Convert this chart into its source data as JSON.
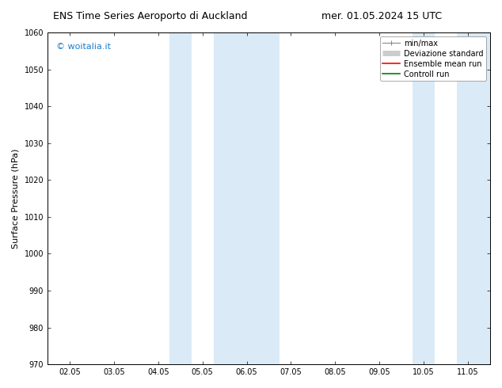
{
  "title_left": "ENS Time Series Aeroporto di Auckland",
  "title_right": "mer. 01.05.2024 15 UTC",
  "ylabel": "Surface Pressure (hPa)",
  "ylim": [
    970,
    1060
  ],
  "yticks": [
    970,
    980,
    990,
    1000,
    1010,
    1020,
    1030,
    1040,
    1050,
    1060
  ],
  "xtick_labels": [
    "02.05",
    "03.05",
    "04.05",
    "05.05",
    "06.05",
    "07.05",
    "08.05",
    "09.05",
    "10.05",
    "11.05"
  ],
  "xtick_positions": [
    1,
    2,
    3,
    4,
    5,
    6,
    7,
    8,
    9,
    10
  ],
  "xlim": [
    0.5,
    10.5
  ],
  "shaded_bands": [
    {
      "x_start": 3.0,
      "x_end": 4.0,
      "color": "#daeaf7"
    },
    {
      "x_start": 4.5,
      "x_end": 5.5,
      "color": "#daeaf7"
    },
    {
      "x_start": 9.0,
      "x_end": 9.5,
      "color": "#daeaf7"
    },
    {
      "x_start": 9.5,
      "x_end": 10.0,
      "color": "#daeaf7"
    }
  ],
  "watermark_text": "© woitalia.it",
  "watermark_color": "#1e7fce",
  "bg_color": "#ffffff",
  "title_fontsize": 9,
  "tick_fontsize": 7,
  "ylabel_fontsize": 8,
  "legend_fontsize": 7
}
